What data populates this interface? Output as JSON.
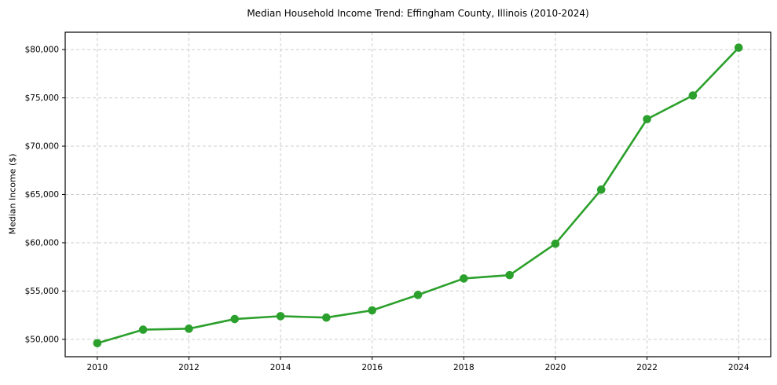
{
  "chart_data": {
    "type": "line",
    "title": "Median Household Income Trend: Effingham County, Illinois (2010-2024)",
    "xlabel": "",
    "ylabel": "Median Income ($)",
    "x": [
      2010,
      2011,
      2012,
      2013,
      2014,
      2015,
      2016,
      2017,
      2018,
      2019,
      2020,
      2021,
      2022,
      2023,
      2024
    ],
    "values": [
      49600,
      51000,
      51100,
      52100,
      52400,
      52250,
      53000,
      54600,
      56300,
      56650,
      59900,
      65500,
      72800,
      75250,
      80200
    ],
    "x_ticks": [
      2010,
      2012,
      2014,
      2016,
      2018,
      2020,
      2022,
      2024
    ],
    "x_tick_labels": [
      "2010",
      "2012",
      "2014",
      "2016",
      "2018",
      "2020",
      "2022",
      "2024"
    ],
    "y_ticks": [
      50000,
      55000,
      60000,
      65000,
      70000,
      75000,
      80000
    ],
    "y_tick_labels": [
      "$50,000",
      "$55,000",
      "$60,000",
      "$65,000",
      "$70,000",
      "$75,000",
      "$80,000"
    ],
    "xlim": [
      2009.3,
      2024.7
    ],
    "ylim": [
      48200,
      81800
    ],
    "grid": true,
    "grid_style": "dashed",
    "legend": "none",
    "line_color": "#2ca02c",
    "marker_color": "#2ca02c",
    "marker": "circle",
    "grid_color": "#cccccc",
    "spine_color": "#000000",
    "text_color": "#000000",
    "background_color": "#ffffff"
  }
}
